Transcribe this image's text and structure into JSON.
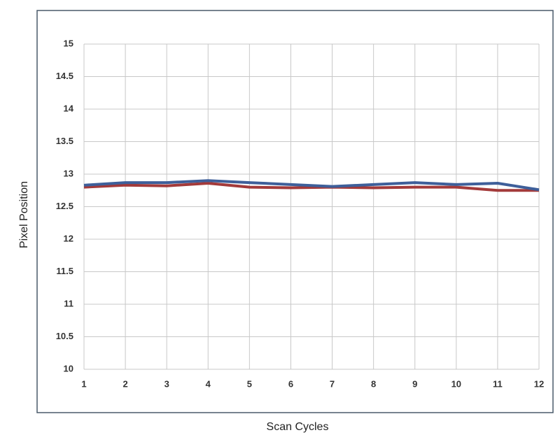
{
  "chart_data": {
    "type": "line",
    "x_label": "Scan Cycles",
    "y_label": "Pixel Position",
    "x": [
      1,
      2,
      3,
      4,
      5,
      6,
      7,
      8,
      9,
      10,
      11,
      12
    ],
    "series": [
      {
        "color": "#3e5f9a",
        "values": [
          12.83,
          12.87,
          12.87,
          12.9,
          12.87,
          12.84,
          12.81,
          12.84,
          12.87,
          12.84,
          12.86,
          12.76
        ]
      },
      {
        "color": "#a33a3a",
        "values": [
          12.8,
          12.83,
          12.82,
          12.86,
          12.8,
          12.79,
          12.8,
          12.79,
          12.8,
          12.8,
          12.75,
          12.75
        ]
      }
    ],
    "xlim": [
      1,
      12
    ],
    "xticks": [
      1,
      2,
      3,
      4,
      5,
      6,
      7,
      8,
      9,
      10,
      11,
      12
    ],
    "ylim": [
      10,
      15
    ],
    "yticks": [
      10,
      10.5,
      11,
      11.5,
      12,
      12.5,
      13,
      13.5,
      14,
      14.5,
      15
    ],
    "grid": true
  }
}
